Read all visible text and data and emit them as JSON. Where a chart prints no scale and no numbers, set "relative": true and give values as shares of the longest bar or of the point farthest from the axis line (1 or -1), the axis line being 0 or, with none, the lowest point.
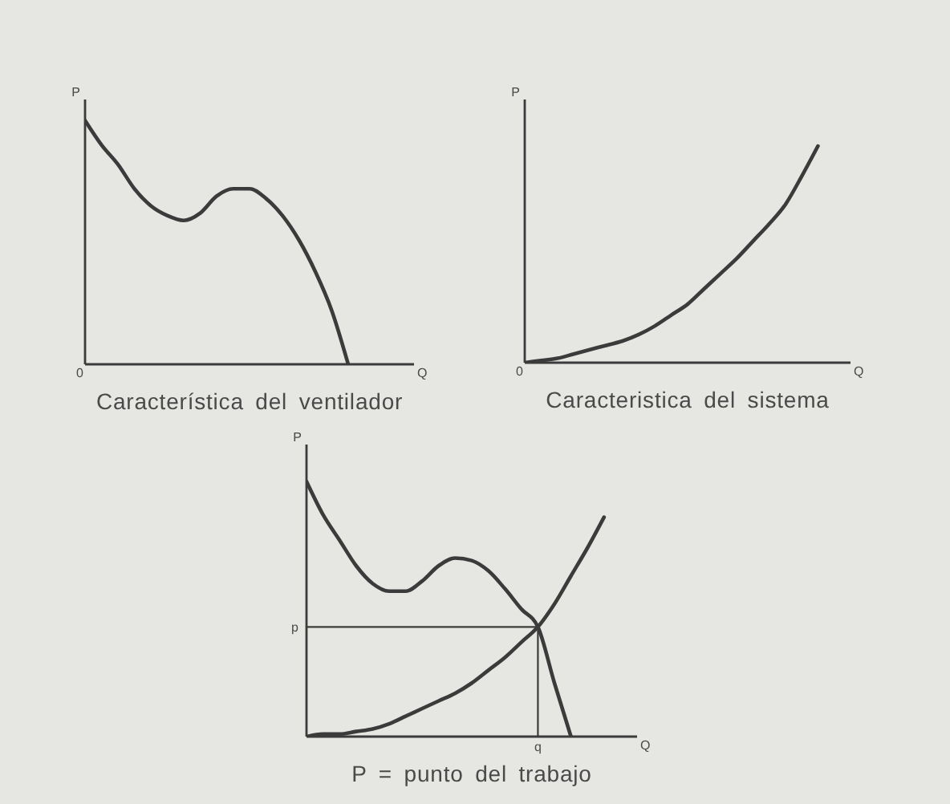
{
  "chart_data": [
    {
      "type": "line",
      "title": "Característica del ventilador",
      "xlabel": "Q",
      "ylabel": "P",
      "relative": true,
      "marker": "none",
      "categories": [
        null,
        null,
        null,
        null,
        null,
        null,
        null,
        null,
        null,
        null,
        null,
        null,
        null,
        null,
        null,
        null,
        null,
        null,
        null,
        null,
        null
      ],
      "series": [
        {
          "color": "#3b3b3b",
          "values": [
            1.0,
            0.9,
            0.82,
            0.72,
            0.65,
            0.61,
            0.59,
            0.62,
            0.69,
            0.72,
            0.72,
            0.68,
            0.61,
            0.51,
            0.38,
            0.22,
            0,
            null,
            null,
            null,
            null
          ]
        }
      ],
      "annotations": [
        "0"
      ]
    },
    {
      "type": "line",
      "title": "Caracteristica del sistema",
      "xlabel": "Q",
      "ylabel": "P",
      "relative": true,
      "marker": "none",
      "categories": [
        null,
        null,
        null,
        null,
        null,
        null,
        null,
        null,
        null,
        null,
        null,
        null,
        null,
        null,
        null,
        null,
        null,
        null,
        null,
        null,
        null
      ],
      "series": [
        {
          "color": "#3b3b3b",
          "values": [
            0,
            0.01,
            0.02,
            0.04,
            0.06,
            0.08,
            0.1,
            0.13,
            0.17,
            0.22,
            0.27,
            0.34,
            0.41,
            0.48,
            0.56,
            0.64,
            0.73,
            0.86,
            1.0,
            null,
            null
          ]
        }
      ],
      "annotations": [
        "0"
      ]
    },
    {
      "type": "line",
      "title": "P = punto del trabajo",
      "xlabel": "Q",
      "ylabel": "P",
      "relative": true,
      "marker": "none",
      "categories": [
        null,
        null,
        null,
        null,
        null,
        null,
        null,
        null,
        null,
        null,
        null,
        null,
        null,
        null,
        null,
        null,
        null,
        null,
        null,
        null,
        null
      ],
      "series": [
        {
          "color": "#3b3b3b",
          "values": [
            1.0,
            0.87,
            0.77,
            0.67,
            0.6,
            0.57,
            0.57,
            0.61,
            0.67,
            0.7,
            0.69,
            0.65,
            0.58,
            0.5,
            0.43,
            0.21,
            0,
            null,
            null,
            null,
            null
          ]
        },
        {
          "color": "#3b3b3b",
          "values": [
            0,
            0.01,
            0.01,
            0.02,
            0.03,
            0.05,
            0.08,
            0.11,
            0.14,
            0.17,
            0.21,
            0.26,
            0.31,
            0.37,
            0.43,
            0.52,
            0.63,
            0.74,
            0.86,
            null,
            null
          ]
        }
      ],
      "ref_lines": [
        {
          "axis": "y",
          "value": 0.43,
          "label": "p"
        }
      ],
      "annotations": [
        "q"
      ]
    }
  ]
}
